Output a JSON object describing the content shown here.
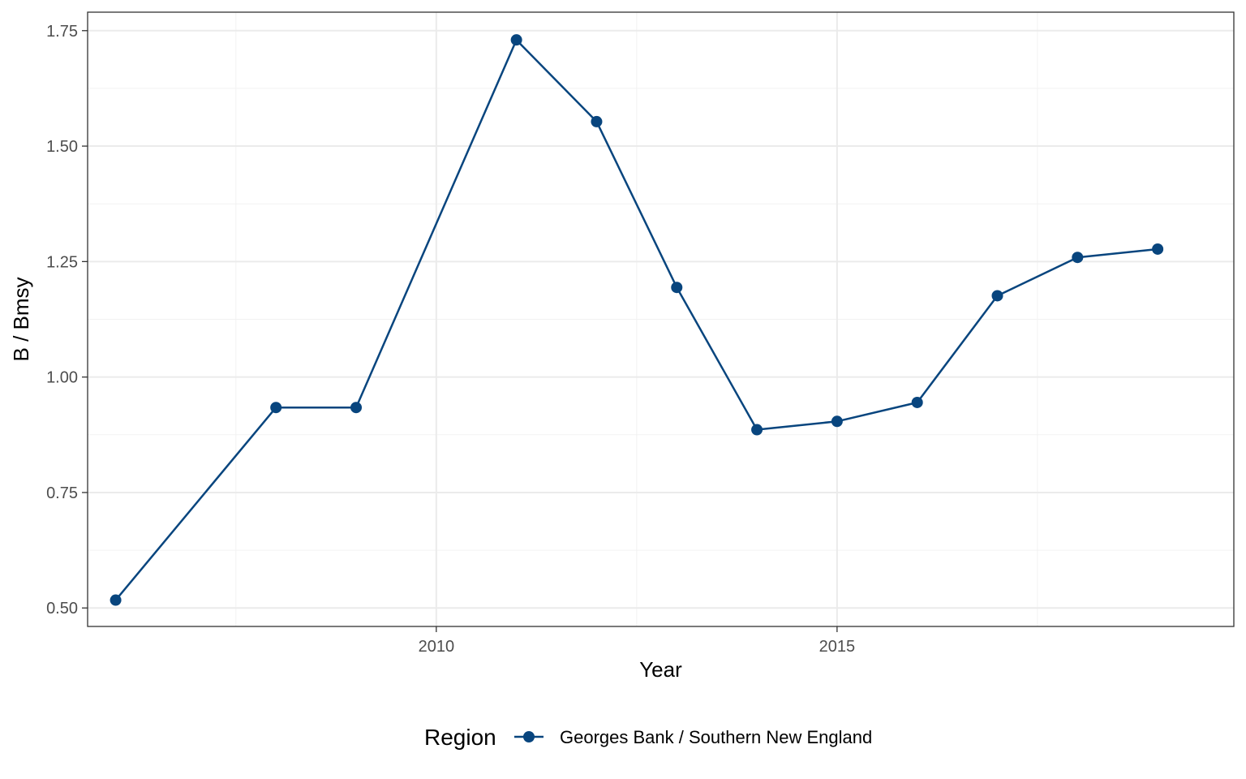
{
  "chart_data": {
    "type": "line",
    "xlabel": "Year",
    "ylabel": "B / Bmsy",
    "xlim": [
      2005.65,
      2019.95
    ],
    "ylim": [
      0.46,
      1.79
    ],
    "x_ticks": [
      2010,
      2015
    ],
    "x_tick_labels": [
      "2010",
      "2015"
    ],
    "y_ticks": [
      0.5,
      0.75,
      1.0,
      1.25,
      1.5,
      1.75
    ],
    "y_tick_labels": [
      "0.50",
      "0.75",
      "1.00",
      "1.25",
      "1.50",
      "1.75"
    ],
    "grid": true,
    "legend": {
      "title": "Region",
      "position": "bottom"
    },
    "series": [
      {
        "name": "Georges Bank / Southern New England",
        "color": "#08457e",
        "x": [
          2006,
          2008,
          2009,
          2011,
          2012,
          2013,
          2014,
          2015,
          2016,
          2017,
          2018,
          2019
        ],
        "y": [
          0.517,
          0.934,
          0.934,
          1.73,
          1.553,
          1.194,
          0.886,
          0.904,
          0.945,
          1.176,
          1.259,
          1.277
        ]
      }
    ]
  }
}
